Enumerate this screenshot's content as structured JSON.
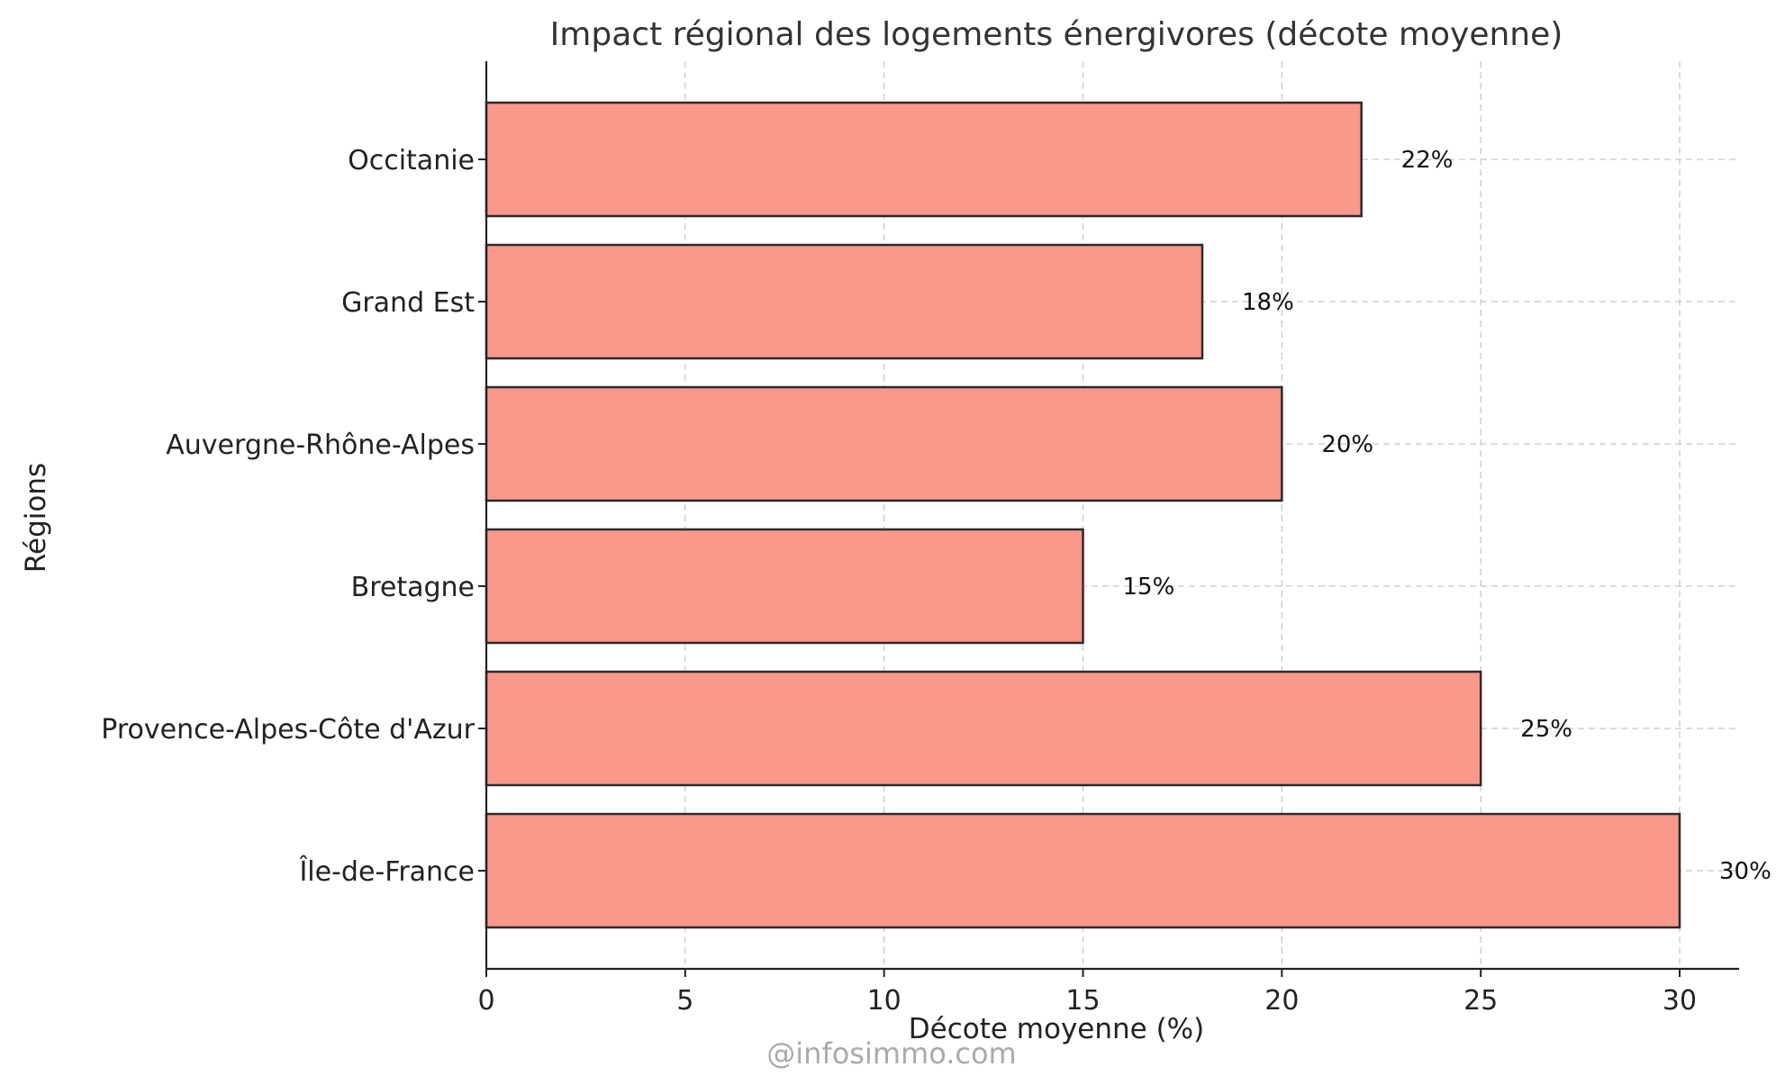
{
  "chart_data": {
    "type": "bar",
    "orientation": "horizontal",
    "title": "Impact régional des logements énergivores (décote moyenne)",
    "xlabel": "Décote moyenne (%)",
    "ylabel": "Régions",
    "categories": [
      "Île-de-France",
      "Provence-Alpes-Côte d'Azur",
      "Bretagne",
      "Auvergne-Rhône-Alpes",
      "Grand Est",
      "Occitanie"
    ],
    "values": [
      30,
      25,
      15,
      20,
      18,
      22
    ],
    "data_labels": [
      "30%",
      "25%",
      "15%",
      "20%",
      "18%",
      "22%"
    ],
    "xlim": [
      0,
      31.5
    ],
    "xticks": [
      0,
      5,
      10,
      15,
      20,
      25,
      30
    ],
    "xtick_labels": [
      "0",
      "5",
      "10",
      "15",
      "20",
      "25",
      "30"
    ],
    "grid": true,
    "colors": {
      "bar": "#fa988c",
      "edge": "#2b2b2b"
    }
  },
  "watermark": "@infosimmo.com"
}
